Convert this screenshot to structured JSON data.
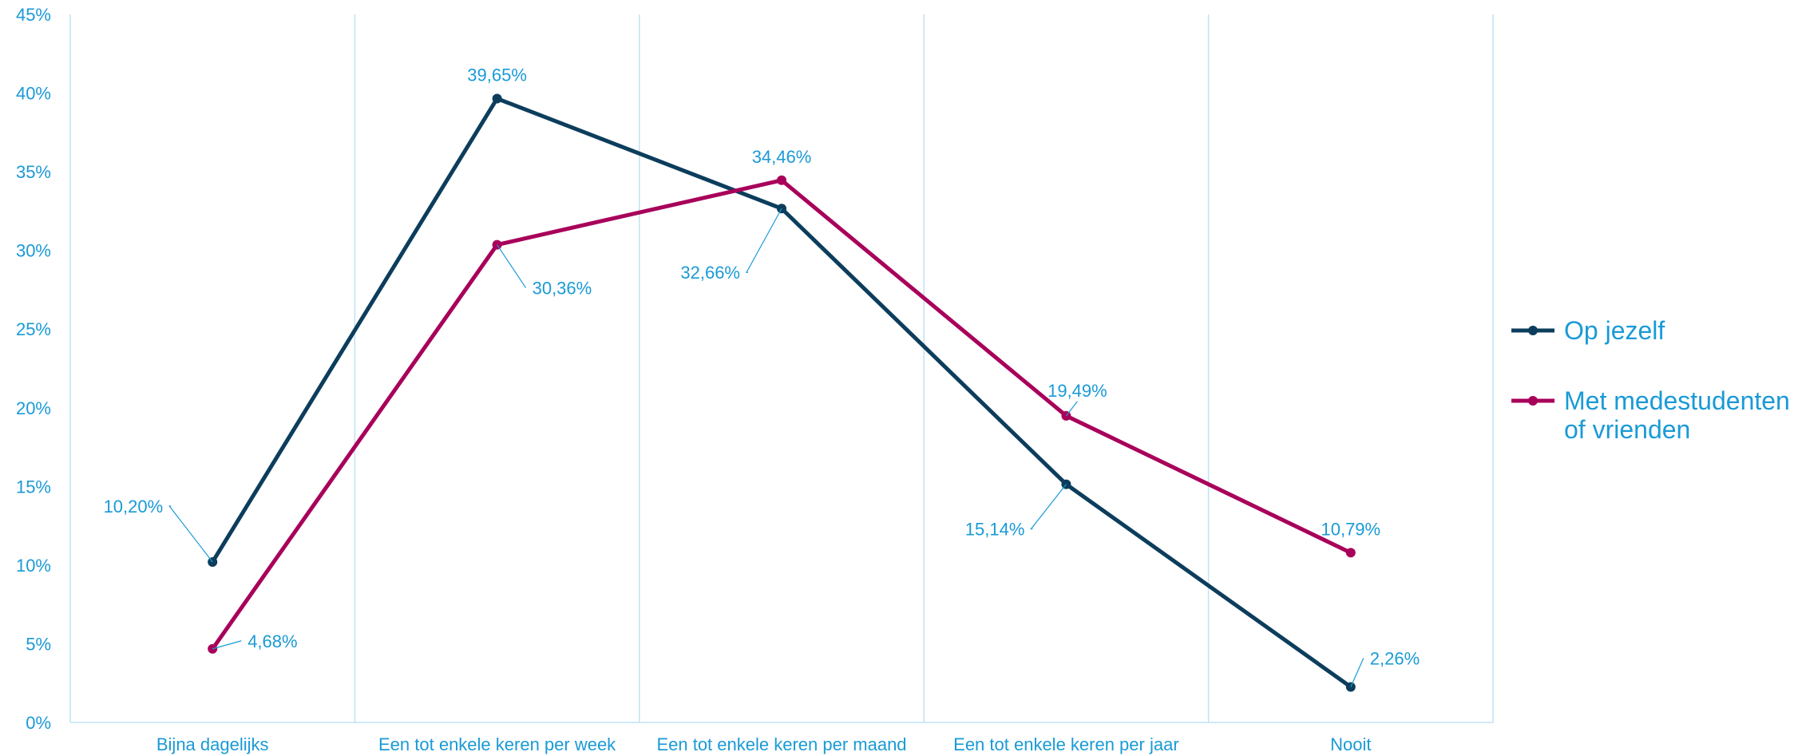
{
  "chart_data": {
    "type": "line",
    "categories": [
      "Bijna dagelijks",
      "Een tot enkele keren per week",
      "Een tot enkele keren per maand",
      "Een tot enkele keren per jaar",
      "Nooit"
    ],
    "series": [
      {
        "name": "Op jezelf",
        "color": "#0c3d5c",
        "values": [
          10.2,
          39.65,
          32.66,
          15.14,
          2.26
        ],
        "labels": [
          "10,20%",
          "39,65%",
          "32,66%",
          "15,14%",
          "2,26%"
        ]
      },
      {
        "name": "Met medestudenten of vrienden",
        "color": "#a8005a",
        "values": [
          4.68,
          30.36,
          34.46,
          19.49,
          10.79
        ],
        "labels": [
          "4,68%",
          "30,36%",
          "34,46%",
          "19,49%",
          "10,79%"
        ]
      }
    ],
    "legend_lines": [
      [
        "Op jezelf"
      ],
      [
        "Met medestudenten",
        "of vrienden"
      ]
    ],
    "ylim": [
      0,
      45
    ],
    "yticks": [
      0,
      5,
      10,
      15,
      20,
      25,
      30,
      35,
      40,
      45
    ],
    "ytick_labels": [
      "0%",
      "5%",
      "10%",
      "15%",
      "20%",
      "25%",
      "30%",
      "35%",
      "40%",
      "45%"
    ],
    "grid": "vertical",
    "legend_position": "right",
    "label_color": "#1a9ad6",
    "grid_color": "#bfe3f4"
  }
}
